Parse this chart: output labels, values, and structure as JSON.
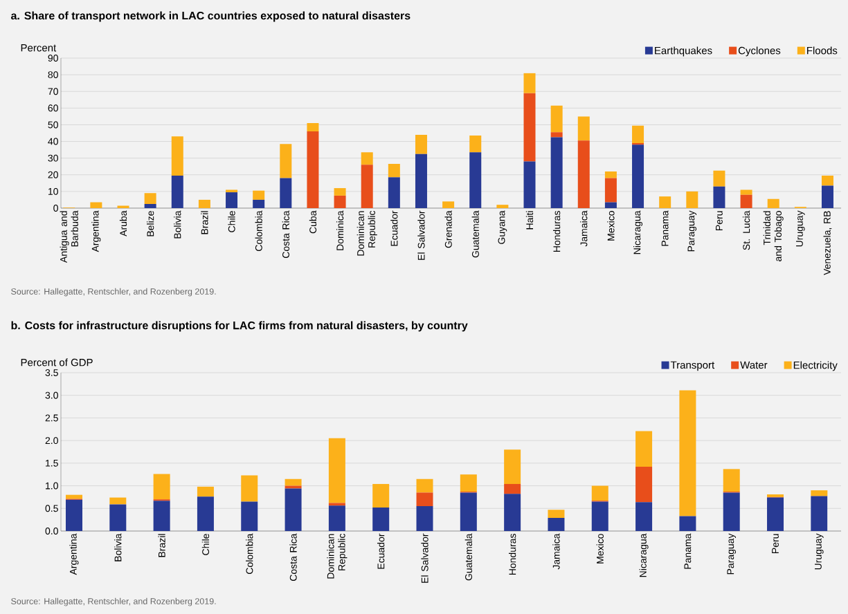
{
  "chart_data": [
    {
      "type": "bar",
      "stacked": true,
      "title": "a. Share of transport network in LAC countries exposed to natural disasters",
      "ylabel": "Percent",
      "categories": [
        "Antigua and Barbuda",
        "Argentina",
        "Aruba",
        "Belize",
        "Bolivia",
        "Brazil",
        "Chile",
        "Colombia",
        "Costa Rica",
        "Cuba",
        "Dominica",
        "Dominican Republic",
        "Ecuador",
        "El Salvador",
        "Grenada",
        "Guatemala",
        "Guyana",
        "Haiti",
        "Honduras",
        "Jamaica",
        "Mexico",
        "Nicaragua",
        "Panama",
        "Paraguay",
        "Peru",
        "St. Lucia",
        "Trinidad and Tobago",
        "Uruguay",
        "Venezuela, RB"
      ],
      "series": [
        {
          "name": "Earthquakes",
          "color": "#283a94",
          "values": [
            0,
            0,
            0,
            2.5,
            19.5,
            0,
            9.5,
            5,
            18,
            0,
            0,
            0,
            18.5,
            32.5,
            0,
            33.5,
            0,
            28,
            42.5,
            0,
            3.5,
            38,
            0,
            0,
            13,
            0,
            0,
            0,
            13.5
          ]
        },
        {
          "name": "Cyclones",
          "color": "#e84e1b",
          "values": [
            0,
            0,
            0,
            0,
            0,
            0,
            0,
            0,
            0,
            46,
            7.5,
            26,
            0,
            0,
            0,
            0,
            0,
            41,
            3,
            40.5,
            14.5,
            1,
            0,
            0,
            0,
            8,
            0,
            0,
            0
          ]
        },
        {
          "name": "Floods",
          "color": "#fcb11a",
          "values": [
            0.3,
            3.5,
            1.5,
            6.5,
            23.5,
            5,
            1.5,
            5.5,
            20.5,
            5,
            4.5,
            7.5,
            8,
            11.5,
            4,
            10,
            2,
            12,
            16,
            14.5,
            4,
            10.5,
            7,
            10,
            9.5,
            3,
            5.5,
            0.7,
            6
          ]
        }
      ],
      "ylim": [
        0,
        90
      ],
      "yticks": [
        0,
        10,
        20,
        30,
        40,
        50,
        60,
        70,
        80,
        90
      ],
      "grid": "y",
      "legend": "top right",
      "annotations": [
        "Source: Hallegatte, Rentschler, and Rozenberg 2019."
      ]
    },
    {
      "type": "bar",
      "stacked": true,
      "title": "b. Costs for infrastructure disruptions for LAC firms from natural disasters, by country",
      "ylabel": "Percent of GDP",
      "categories": [
        "Argentina",
        "Bolivia",
        "Brazil",
        "Chile",
        "Colombia",
        "Costa Rica",
        "Dominican Republic",
        "Ecuador",
        "El Salvador",
        "Guatemala",
        "Honduras",
        "Jamaica",
        "Mexico",
        "Nicaragua",
        "Panama",
        "Paraguay",
        "Peru",
        "Uruguay"
      ],
      "series": [
        {
          "name": "Transport",
          "color": "#283a94",
          "values": [
            0.69,
            0.59,
            0.67,
            0.76,
            0.65,
            0.94,
            0.56,
            0.52,
            0.55,
            0.85,
            0.82,
            0.29,
            0.65,
            0.64,
            0.33,
            0.85,
            0.74,
            0.77
          ]
        },
        {
          "name": "Water",
          "color": "#e84e1b",
          "values": [
            0.02,
            0,
            0.03,
            0,
            0,
            0.06,
            0.06,
            0,
            0.3,
            0.02,
            0.22,
            0,
            0.02,
            0.78,
            0,
            0.02,
            0.01,
            0
          ]
        },
        {
          "name": "Electricity",
          "color": "#fcb11a",
          "values": [
            0.09,
            0.15,
            0.56,
            0.22,
            0.58,
            0.15,
            1.43,
            0.52,
            0.3,
            0.38,
            0.76,
            0.18,
            0.33,
            0.79,
            2.78,
            0.5,
            0.06,
            0.13
          ]
        }
      ],
      "ylim": [
        0,
        3.5
      ],
      "yticks": [
        {
          "value": 0,
          "label": "0.0"
        },
        {
          "value": 0.5,
          "label": "0.5"
        },
        {
          "value": 1,
          "label": "1.0"
        },
        {
          "value": 1.5,
          "label": "1.5"
        },
        {
          "value": 2,
          "label": "2.0"
        },
        {
          "value": 2.5,
          "label": "2.5"
        },
        {
          "value": 3,
          "label": "3.0"
        },
        {
          "value": 3.5,
          "label": "3.5"
        }
      ],
      "grid": "y",
      "legend": "top right",
      "annotations": [
        "Source: Hallegatte, Rentschler, and Rozenberg 2019."
      ]
    }
  ]
}
